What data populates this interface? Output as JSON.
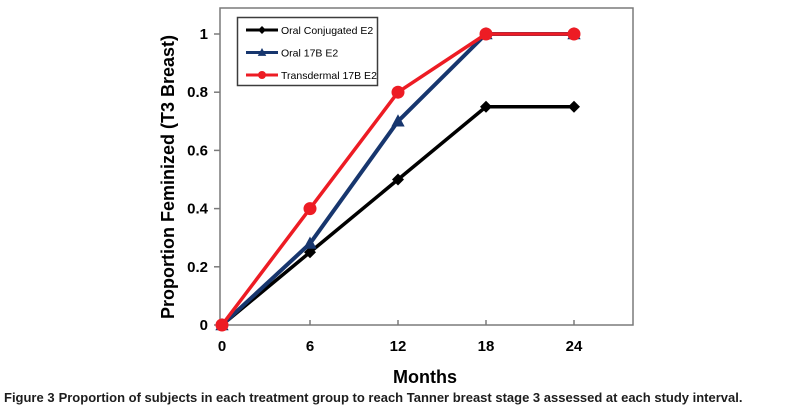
{
  "figure": {
    "caption_label": "Figure 3",
    "caption_text": "Proportion of subjects in each treatment group to reach Tanner breast stage 3 assessed at each study interval."
  },
  "chart_data": {
    "type": "line",
    "title": "",
    "xlabel": "Months",
    "ylabel": "Proportion Feminized (T3 Breast)",
    "x": [
      0,
      6,
      12,
      18,
      24
    ],
    "x_ticks": [
      0,
      6,
      12,
      18,
      24
    ],
    "y_ticks": [
      0,
      0.2,
      0.4,
      0.6,
      0.8,
      1
    ],
    "xlim": [
      0,
      28
    ],
    "ylim": [
      0,
      1.09
    ],
    "grid": false,
    "legend_position": "top-left",
    "series": [
      {
        "name": "Oral Conjugated E2",
        "marker": "diamond",
        "color": "#000000",
        "values": [
          0,
          0.25,
          0.5,
          0.75,
          0.75
        ]
      },
      {
        "name": "Oral 17B E2",
        "marker": "triangle",
        "color": "#17366e",
        "values": [
          0,
          0.28,
          0.7,
          1,
          1
        ]
      },
      {
        "name": "Transdermal 17B E2",
        "marker": "circle",
        "color": "#ed1c24",
        "values": [
          0,
          0.4,
          0.8,
          1,
          1
        ]
      }
    ],
    "colors": {
      "axis": "#7a7a7a",
      "tick_label": "#000000",
      "legend_border": "#3c3c3c",
      "background": "#ffffff"
    }
  }
}
